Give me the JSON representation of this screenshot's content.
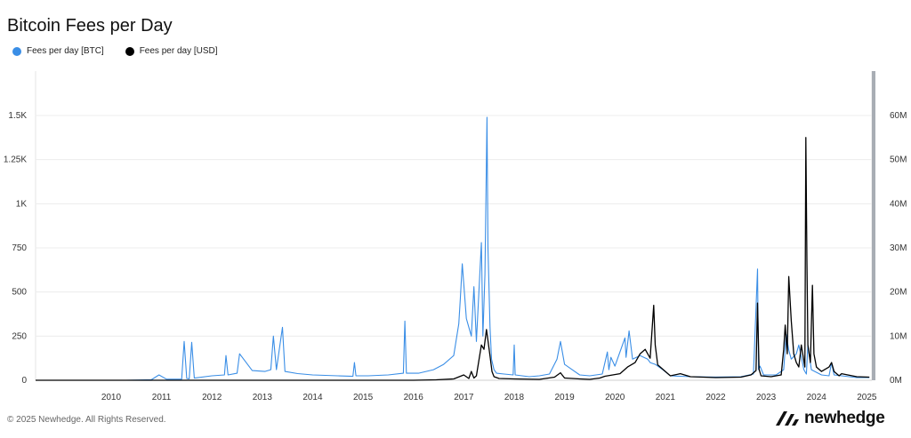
{
  "title": "Bitcoin Fees per Day",
  "legend": [
    {
      "label": "Fees per day [BTC]",
      "color": "#3a8ee6"
    },
    {
      "label": "Fees per day [USD]",
      "color": "#000000"
    }
  ],
  "footer": "© 2025 Newhedge. All Rights Reserved.",
  "brand": {
    "name": "newhedge",
    "logo_icon": "newhedge-logo-icon"
  },
  "chart_data": {
    "type": "line",
    "title": "Bitcoin Fees per Day",
    "xlabel": "",
    "ylabel": "",
    "xlim": [
      2009.0,
      2025.6
    ],
    "x_ticks": [
      "2010",
      "2011",
      "2012",
      "2013",
      "2014",
      "2015",
      "2016",
      "2017",
      "2018",
      "2019",
      "2020",
      "2021",
      "2022",
      "2023",
      "2024",
      "2025"
    ],
    "y_left": {
      "ylim": [
        0,
        1500
      ],
      "ticks": [
        0,
        250,
        500,
        750,
        1000,
        1250,
        1500
      ],
      "tick_labels": [
        "0",
        "250",
        "500",
        "750",
        "1K",
        "1.25K",
        "1.5K"
      ]
    },
    "y_right": {
      "ylim": [
        0,
        60000000
      ],
      "ticks": [
        0,
        10000000,
        20000000,
        30000000,
        40000000,
        50000000,
        60000000
      ],
      "tick_labels": [
        "0M",
        "10M",
        "20M",
        "30M",
        "40M",
        "50M",
        "60M"
      ]
    },
    "grid": true,
    "legend_position": "top-left",
    "series": [
      {
        "name": "Fees per day [BTC]",
        "axis": "left",
        "color": "#3a8ee6",
        "x": [
          2009.0,
          2010.0,
          2010.8,
          2011.3,
          2011.45,
          2011.6,
          2011.9,
          2011.95,
          2012.0,
          2012.05,
          2012.1,
          2012.15,
          2012.5,
          2012.75,
          2012.78,
          2012.82,
          2013.0,
          2013.05,
          2013.3,
          2013.55,
          2013.67,
          2013.72,
          2013.78,
          2013.9,
          2013.95,
          2014.2,
          2014.5,
          2015.0,
          2015.3,
          2015.33,
          2015.36,
          2015.6,
          2016.0,
          2016.3,
          2016.33,
          2016.36,
          2016.6,
          2016.9,
          2017.1,
          2017.3,
          2017.4,
          2017.43,
          2017.47,
          2017.55,
          2017.65,
          2017.7,
          2017.75,
          2017.85,
          2017.88,
          2017.92,
          2017.96,
          2017.98,
          2018.02,
          2018.05,
          2018.1,
          2018.15,
          2018.3,
          2018.48,
          2018.5,
          2018.52,
          2018.8,
          2019.0,
          2019.2,
          2019.35,
          2019.42,
          2019.5,
          2019.65,
          2019.8,
          2020.0,
          2020.25,
          2020.35,
          2020.38,
          2020.42,
          2020.5,
          2020.7,
          2020.72,
          2020.78,
          2020.85,
          2021.0,
          2021.15,
          2021.2,
          2021.3,
          2021.45,
          2021.6,
          2022.0,
          2022.5,
          2023.0,
          2023.25,
          2023.33,
          2023.35,
          2023.38,
          2023.45,
          2023.7,
          2023.85,
          2023.9,
          2023.95,
          2024.0,
          2024.1,
          2024.15,
          2024.25,
          2024.3,
          2024.33,
          2024.4,
          2024.6,
          2024.75,
          2024.8,
          2024.85,
          2025.0,
          2025.3,
          2025.55
        ],
        "y": [
          0,
          0,
          0,
          3,
          30,
          6,
          6,
          220,
          10,
          8,
          215,
          12,
          25,
          30,
          140,
          30,
          40,
          150,
          55,
          50,
          60,
          250,
          60,
          300,
          50,
          38,
          30,
          25,
          22,
          100,
          25,
          25,
          30,
          40,
          335,
          40,
          40,
          60,
          90,
          140,
          320,
          460,
          660,
          350,
          250,
          530,
          220,
          780,
          250,
          600,
          1490,
          750,
          300,
          120,
          60,
          40,
          35,
          30,
          200,
          30,
          20,
          25,
          35,
          120,
          220,
          90,
          60,
          30,
          25,
          35,
          160,
          60,
          130,
          80,
          240,
          130,
          280,
          120,
          140,
          120,
          100,
          90,
          60,
          25,
          20,
          18,
          20,
          35,
          630,
          60,
          80,
          30,
          30,
          60,
          260,
          170,
          120,
          150,
          200,
          60,
          35,
          200,
          60,
          30,
          25,
          100,
          30,
          25,
          15,
          15
        ]
      },
      {
        "name": "Fees per day [USD]",
        "axis": "right",
        "color": "#000000",
        "x": [
          2009.0,
          2016.5,
          2016.95,
          2017.3,
          2017.5,
          2017.6,
          2017.65,
          2017.7,
          2017.75,
          2017.85,
          2017.9,
          2017.95,
          2017.98,
          2018.02,
          2018.06,
          2018.1,
          2018.2,
          2018.5,
          2019.0,
          2019.3,
          2019.42,
          2019.5,
          2019.8,
          2020.0,
          2020.2,
          2020.3,
          2020.6,
          2020.75,
          2020.9,
          2021.0,
          2021.1,
          2021.2,
          2021.27,
          2021.3,
          2021.35,
          2021.45,
          2021.6,
          2021.8,
          2022.0,
          2022.5,
          2023.0,
          2023.2,
          2023.3,
          2023.33,
          2023.36,
          2023.4,
          2023.6,
          2023.8,
          2023.85,
          2023.88,
          2023.92,
          2023.95,
          2024.0,
          2024.05,
          2024.1,
          2024.15,
          2024.2,
          2024.27,
          2024.29,
          2024.31,
          2024.33,
          2024.38,
          2024.42,
          2024.45,
          2024.5,
          2024.6,
          2024.75,
          2024.8,
          2024.85,
          2024.95,
          2025.0,
          2025.3,
          2025.55
        ],
        "y": [
          0,
          0,
          100000,
          300000,
          1200000,
          400000,
          2000000,
          500000,
          1000000,
          8000000,
          7000000,
          11500000,
          9000000,
          5500000,
          2000000,
          800000,
          400000,
          300000,
          200000,
          700000,
          1700000,
          500000,
          300000,
          200000,
          500000,
          900000,
          1500000,
          3000000,
          4000000,
          6000000,
          7000000,
          5000000,
          17000000,
          8000000,
          3500000,
          2500000,
          1000000,
          1500000,
          800000,
          600000,
          700000,
          1200000,
          2200000,
          17500000,
          2500000,
          1000000,
          800000,
          1200000,
          7000000,
          12500000,
          6000000,
          23500000,
          13500000,
          6000000,
          4000000,
          3000000,
          8000000,
          3000000,
          55000000,
          27000000,
          8000000,
          4000000,
          21500000,
          6000000,
          3000000,
          2000000,
          3000000,
          4000000,
          2000000,
          1000000,
          1500000,
          800000,
          700000
        ]
      }
    ]
  }
}
